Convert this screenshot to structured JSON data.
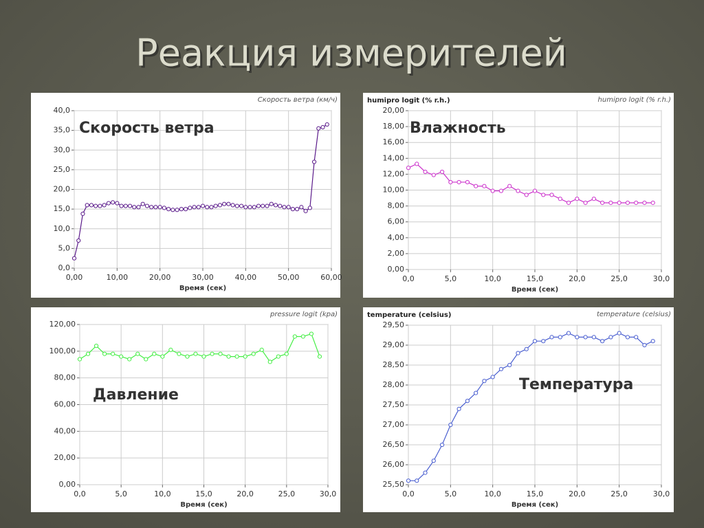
{
  "title": "Реакция измерителей",
  "chart_data": [
    {
      "type": "line",
      "title": "Скорость ветра",
      "xlabel": "Время (сек)",
      "x": [
        0,
        1,
        2,
        3,
        4,
        5,
        6,
        7,
        8,
        9,
        10,
        11,
        12,
        13,
        14,
        15,
        16,
        17,
        18,
        19,
        20,
        21,
        22,
        23,
        24,
        25,
        26,
        27,
        28,
        29,
        30,
        31,
        32,
        33,
        34,
        35,
        36,
        37,
        38,
        39,
        40,
        41,
        42,
        43,
        44,
        45,
        46,
        47,
        48,
        49,
        50,
        51,
        52,
        53,
        54,
        55,
        56,
        57,
        58,
        59
      ],
      "series": [
        {
          "name": "Скорость ветра (км/ч)",
          "color": "#5a1a8a",
          "values": [
            2.5,
            7,
            13.8,
            16,
            16,
            15.8,
            15.8,
            16,
            16.5,
            16.7,
            16.5,
            15.8,
            15.8,
            15.8,
            15.5,
            15.5,
            16.3,
            15.8,
            15.5,
            15.5,
            15.5,
            15.3,
            15,
            14.8,
            14.8,
            15,
            15,
            15.3,
            15.5,
            15.5,
            15.8,
            15.5,
            15.5,
            15.8,
            16,
            16.3,
            16.3,
            16,
            15.8,
            15.8,
            15.5,
            15.5,
            15.5,
            15.8,
            15.8,
            15.8,
            16.3,
            16,
            15.8,
            15.5,
            15.5,
            15,
            15,
            15.5,
            14.5,
            15.3,
            27,
            35.5,
            35.8,
            36.5
          ]
        }
      ],
      "xlim": [
        0,
        60
      ],
      "xticks": [
        {
          "value": 0,
          "label": "0,00"
        },
        {
          "value": 10,
          "label": "10,00"
        },
        {
          "value": 20,
          "label": "20,00"
        },
        {
          "value": 30,
          "label": "30,00"
        },
        {
          "value": 40,
          "label": "40,00"
        },
        {
          "value": 50,
          "label": "50,00"
        },
        {
          "value": 60,
          "label": "60,00"
        }
      ],
      "ylim": [
        0,
        40
      ],
      "yticks": [
        {
          "value": 0,
          "label": "0,0"
        },
        {
          "value": 5,
          "label": "5,0"
        },
        {
          "value": 10,
          "label": "10,0"
        },
        {
          "value": 15,
          "label": "15,0"
        },
        {
          "value": 20,
          "label": "20,0"
        },
        {
          "value": 25,
          "label": "25,0"
        },
        {
          "value": 30,
          "label": "30,0"
        },
        {
          "value": 35,
          "label": "35,0"
        },
        {
          "value": 40,
          "label": "40,0"
        }
      ],
      "grid": true
    },
    {
      "type": "line",
      "title": "Влажность",
      "ylabel": "humipro logit (% r.h.)",
      "xlabel": "Время (сек)",
      "x": [
        0,
        1,
        2,
        3,
        4,
        5,
        6,
        7,
        8,
        9,
        10,
        11,
        12,
        13,
        14,
        15,
        16,
        17,
        18,
        19,
        20,
        21,
        22,
        23,
        24,
        25,
        26,
        27,
        28,
        29
      ],
      "series": [
        {
          "name": "humipro logit (% r.h.)",
          "color": "#cc33cc",
          "values": [
            12.8,
            13.3,
            12.3,
            11.9,
            12.3,
            11,
            11,
            11,
            10.5,
            10.5,
            9.9,
            9.9,
            10.5,
            9.9,
            9.4,
            9.9,
            9.4,
            9.4,
            8.9,
            8.4,
            8.9,
            8.4,
            8.9,
            8.4,
            8.4,
            8.4,
            8.4,
            8.4,
            8.4,
            8.4
          ]
        }
      ],
      "xlim": [
        0,
        30
      ],
      "xticks": [
        {
          "value": 0,
          "label": "0,0"
        },
        {
          "value": 5,
          "label": "5,0"
        },
        {
          "value": 10,
          "label": "10,0"
        },
        {
          "value": 15,
          "label": "15,0"
        },
        {
          "value": 20,
          "label": "20,0"
        },
        {
          "value": 25,
          "label": "25,0"
        },
        {
          "value": 30,
          "label": "30,0"
        }
      ],
      "ylim": [
        0,
        20
      ],
      "yticks": [
        {
          "value": 0,
          "label": "0,00"
        },
        {
          "value": 2,
          "label": "2,00"
        },
        {
          "value": 4,
          "label": "4,00"
        },
        {
          "value": 6,
          "label": "6,00"
        },
        {
          "value": 8,
          "label": "8,00"
        },
        {
          "value": 10,
          "label": "10,00"
        },
        {
          "value": 12,
          "label": "12,00"
        },
        {
          "value": 14,
          "label": "14,00"
        },
        {
          "value": 16,
          "label": "16,00"
        },
        {
          "value": 18,
          "label": "18,00"
        },
        {
          "value": 20,
          "label": "20,00"
        }
      ],
      "grid": true
    },
    {
      "type": "line",
      "title": "Давление",
      "xlabel": "Время (сек)",
      "x": [
        0,
        1,
        2,
        3,
        4,
        5,
        6,
        7,
        8,
        9,
        10,
        11,
        12,
        13,
        14,
        15,
        16,
        17,
        18,
        19,
        20,
        21,
        22,
        23,
        24,
        25,
        26,
        27,
        28,
        29
      ],
      "series": [
        {
          "name": "pressure logit (kpa)",
          "color": "#44ee44",
          "values": [
            94,
            98,
            104,
            98,
            98,
            96,
            94,
            98,
            94,
            98,
            96,
            101,
            98,
            96,
            98,
            96,
            98,
            98,
            96,
            96,
            96,
            98,
            101,
            92,
            96,
            98,
            111,
            111,
            113,
            96
          ]
        }
      ],
      "xlim": [
        0,
        30
      ],
      "xticks": [
        {
          "value": 0,
          "label": "0,0"
        },
        {
          "value": 5,
          "label": "5,0"
        },
        {
          "value": 10,
          "label": "10,0"
        },
        {
          "value": 15,
          "label": "15,0"
        },
        {
          "value": 20,
          "label": "20,0"
        },
        {
          "value": 25,
          "label": "25,0"
        },
        {
          "value": 30,
          "label": "30,0"
        }
      ],
      "ylim": [
        0,
        120
      ],
      "yticks": [
        {
          "value": 0,
          "label": "0,00"
        },
        {
          "value": 20,
          "label": "20,00"
        },
        {
          "value": 40,
          "label": "40,00"
        },
        {
          "value": 60,
          "label": "60,00"
        },
        {
          "value": 80,
          "label": "80,00"
        },
        {
          "value": 100,
          "label": "100,00"
        },
        {
          "value": 120,
          "label": "120,00"
        }
      ],
      "grid": true
    },
    {
      "type": "line",
      "title": "Температура",
      "ylabel": "temperature (celsius)",
      "xlabel": "Время (сек)",
      "x": [
        0,
        1,
        2,
        3,
        4,
        5,
        6,
        7,
        8,
        9,
        10,
        11,
        12,
        13,
        14,
        15,
        16,
        17,
        18,
        19,
        20,
        21,
        22,
        23,
        24,
        25,
        26,
        27,
        28,
        29
      ],
      "series": [
        {
          "name": "temperature (celsius)",
          "color": "#4a5fd0",
          "values": [
            25.6,
            25.6,
            25.8,
            26.1,
            26.5,
            27.0,
            27.4,
            27.6,
            27.8,
            28.1,
            28.2,
            28.4,
            28.5,
            28.8,
            28.9,
            29.1,
            29.1,
            29.2,
            29.2,
            29.3,
            29.2,
            29.2,
            29.2,
            29.1,
            29.2,
            29.3,
            29.2,
            29.2,
            29.0,
            29.1
          ]
        }
      ],
      "xlim": [
        0,
        30
      ],
      "xticks": [
        {
          "value": 0,
          "label": "0,0"
        },
        {
          "value": 5,
          "label": "5,0"
        },
        {
          "value": 10,
          "label": "10,0"
        },
        {
          "value": 15,
          "label": "15,0"
        },
        {
          "value": 20,
          "label": "20,0"
        },
        {
          "value": 25,
          "label": "25,0"
        },
        {
          "value": 30,
          "label": "30,0"
        }
      ],
      "ylim": [
        25.5,
        29.5
      ],
      "yticks": [
        {
          "value": 25.5,
          "label": "25,50"
        },
        {
          "value": 26,
          "label": "26,00"
        },
        {
          "value": 26.5,
          "label": "26,50"
        },
        {
          "value": 27,
          "label": "27,00"
        },
        {
          "value": 27.5,
          "label": "27,50"
        },
        {
          "value": 28,
          "label": "28,00"
        },
        {
          "value": 28.5,
          "label": "28,50"
        },
        {
          "value": 29,
          "label": "29,00"
        },
        {
          "value": 29.5,
          "label": "29,50"
        }
      ],
      "grid": true
    }
  ]
}
